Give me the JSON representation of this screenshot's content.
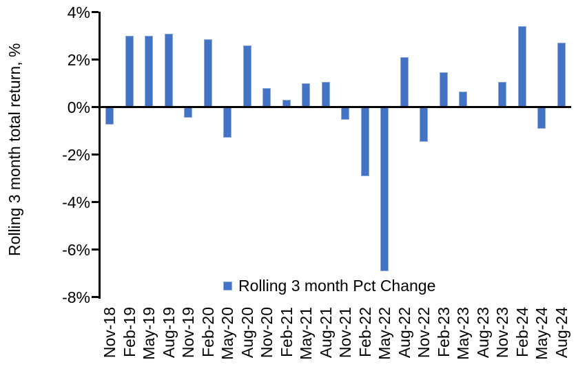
{
  "chart_data": {
    "type": "bar",
    "title": "",
    "xlabel": "",
    "ylabel": "Rolling 3 month total return, %",
    "legend": [
      "Rolling 3 month Pct Change"
    ],
    "legend_position": "bottom-center",
    "categories": [
      "Nov-18",
      "Feb-19",
      "May-19",
      "Aug-19",
      "Nov-19",
      "Feb-20",
      "May-20",
      "Aug-20",
      "Nov-20",
      "Feb-21",
      "May-21",
      "Aug-21",
      "Nov-21",
      "Feb-22",
      "May-22",
      "Aug-22",
      "Nov-22",
      "Feb-23",
      "May-23",
      "Aug-23",
      "Nov-23",
      "Feb-24",
      "May-24",
      "Aug-24"
    ],
    "values": [
      -0.75,
      3.0,
      3.0,
      3.1,
      -0.45,
      2.85,
      -1.3,
      2.6,
      0.8,
      0.3,
      1.0,
      1.05,
      -0.55,
      -2.9,
      -6.9,
      2.1,
      -1.45,
      1.45,
      0.65,
      0.0,
      1.05,
      3.4,
      -0.9,
      2.7
    ],
    "ylim": [
      -8,
      4
    ],
    "yticks": {
      "labels": [
        "4%",
        "2%",
        "0%",
        "-2%",
        "-4%",
        "-6%",
        "-8%"
      ],
      "values": [
        4,
        2,
        0,
        -2,
        -4,
        -6,
        -8
      ]
    },
    "grid": false,
    "colors": {
      "bar_fill": "#4472C4",
      "bar_edge": "#8FAADC",
      "axis": "#000000",
      "text": "#000000",
      "background": "#FFFFFF"
    }
  }
}
